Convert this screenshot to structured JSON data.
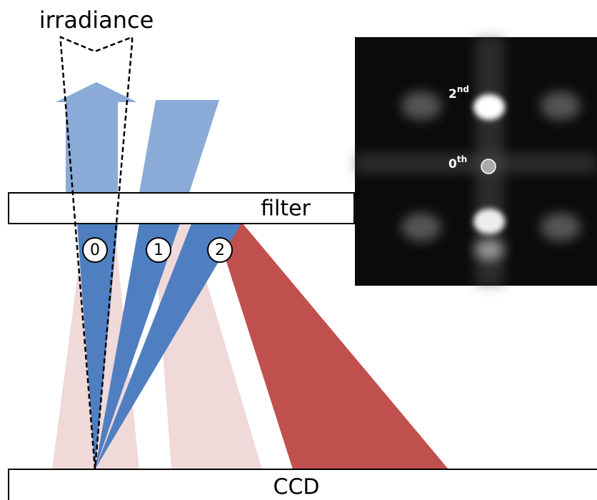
{
  "irradiance_label": "irradiance",
  "filter_label": "filter",
  "ccd_label": "CCD",
  "orders": [
    "0",
    "1",
    "2"
  ],
  "inset": {
    "second_order": {
      "number": "2",
      "suffix": "nd"
    },
    "zero_order": {
      "number": "0",
      "suffix": "th"
    }
  }
}
